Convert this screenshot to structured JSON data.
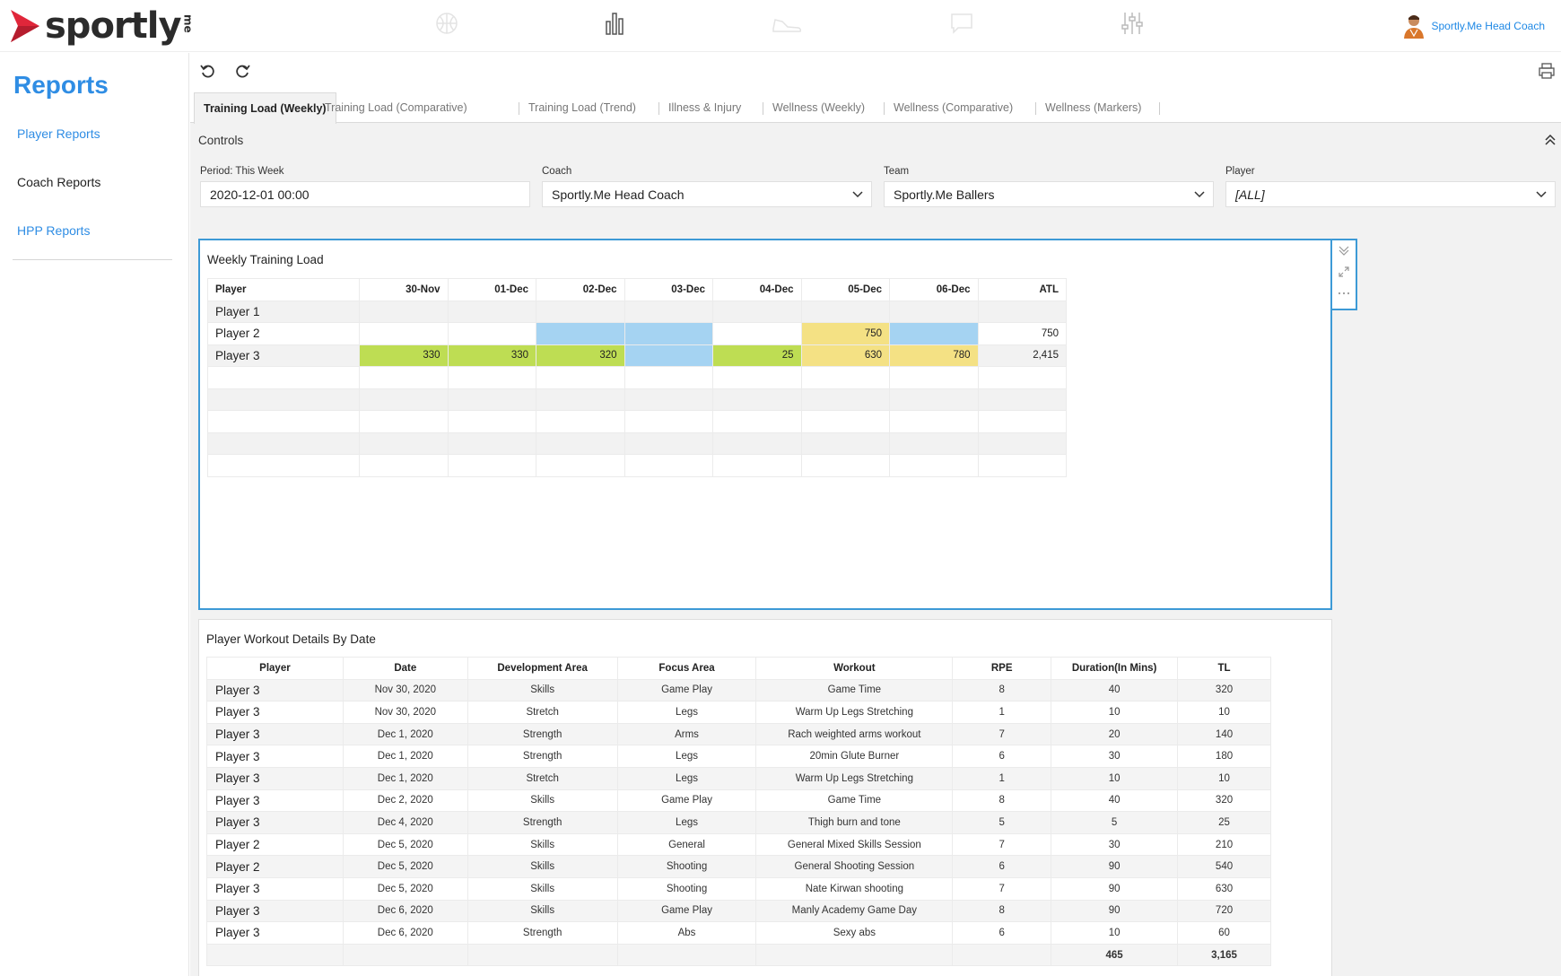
{
  "brand": {
    "name": "sportly",
    "suffix": "me",
    "accent": "#e0263a"
  },
  "nav_icons": [
    "basketball-icon",
    "bar-chart-icon",
    "shoe-icon",
    "chat-icon",
    "sliders-icon"
  ],
  "user": {
    "name": "Sportly.Me Head Coach"
  },
  "sidebar": {
    "title": "Reports",
    "items": [
      {
        "label": "Player Reports"
      },
      {
        "label": "Coach Reports"
      },
      {
        "label": "HPP Reports"
      }
    ]
  },
  "tabs": [
    {
      "label": "Training Load (Weekly)",
      "active": true
    },
    {
      "label": "Training Load (Comparative)"
    },
    {
      "label": "Training Load (Trend)"
    },
    {
      "label": "Illness & Injury"
    },
    {
      "label": "Wellness (Weekly)"
    },
    {
      "label": "Wellness (Comparative)"
    },
    {
      "label": "Wellness (Markers)"
    }
  ],
  "controls": {
    "title": "Controls",
    "period": {
      "label": "Period: This Week",
      "value": "2020-12-01 00:00"
    },
    "coach": {
      "label": "Coach",
      "value": "Sportly.Me Head Coach"
    },
    "team": {
      "label": "Team",
      "value": "Sportly.Me Ballers"
    },
    "player": {
      "label": "Player",
      "value": "[ALL]"
    }
  },
  "weekly": {
    "title": "Weekly Training Load",
    "headers": [
      "Player",
      "30-Nov",
      "01-Dec",
      "02-Dec",
      "03-Dec",
      "04-Dec",
      "05-Dec",
      "06-Dec",
      "ATL"
    ],
    "rows": [
      {
        "player": "Player 1",
        "cells": [
          {
            "v": ""
          },
          {
            "v": ""
          },
          {
            "v": ""
          },
          {
            "v": ""
          },
          {
            "v": ""
          },
          {
            "v": ""
          },
          {
            "v": ""
          }
        ],
        "atl": ""
      },
      {
        "player": "Player 2",
        "cells": [
          {
            "v": ""
          },
          {
            "v": ""
          },
          {
            "v": "",
            "c": "blue"
          },
          {
            "v": "",
            "c": "blue"
          },
          {
            "v": ""
          },
          {
            "v": "750",
            "c": "yellow"
          },
          {
            "v": "",
            "c": "blue"
          }
        ],
        "atl": "750"
      },
      {
        "player": "Player 3",
        "cells": [
          {
            "v": "330",
            "c": "green"
          },
          {
            "v": "330",
            "c": "green"
          },
          {
            "v": "320",
            "c": "green"
          },
          {
            "v": "",
            "c": "blue"
          },
          {
            "v": "25",
            "c": "green"
          },
          {
            "v": "630",
            "c": "yellow"
          },
          {
            "v": "780",
            "c": "yellow"
          }
        ],
        "atl": "2,415"
      }
    ],
    "empty_rows": 5
  },
  "details": {
    "title": "Player Workout Details By Date",
    "headers": [
      "Player",
      "Date",
      "Development Area",
      "Focus Area",
      "Workout",
      "RPE",
      "Duration(In Mins)",
      "TL"
    ],
    "rows": [
      [
        "Player 3",
        "Nov 30, 2020",
        "Skills",
        "Game Play",
        "Game Time",
        "8",
        "40",
        "320"
      ],
      [
        "Player 3",
        "Nov 30, 2020",
        "Stretch",
        "Legs",
        "Warm Up Legs Stretching",
        "1",
        "10",
        "10"
      ],
      [
        "Player 3",
        "Dec 1, 2020",
        "Strength",
        "Arms",
        "Rach weighted arms workout",
        "7",
        "20",
        "140"
      ],
      [
        "Player 3",
        "Dec 1, 2020",
        "Strength",
        "Legs",
        "20min Glute Burner",
        "6",
        "30",
        "180"
      ],
      [
        "Player 3",
        "Dec 1, 2020",
        "Stretch",
        "Legs",
        "Warm Up Legs Stretching",
        "1",
        "10",
        "10"
      ],
      [
        "Player 3",
        "Dec 2, 2020",
        "Skills",
        "Game Play",
        "Game Time",
        "8",
        "40",
        "320"
      ],
      [
        "Player 3",
        "Dec 4, 2020",
        "Strength",
        "Legs",
        "Thigh burn and tone",
        "5",
        "5",
        "25"
      ],
      [
        "Player 2",
        "Dec 5, 2020",
        "Skills",
        "General",
        "General Mixed Skills Session",
        "7",
        "30",
        "210"
      ],
      [
        "Player 2",
        "Dec 5, 2020",
        "Skills",
        "Shooting",
        "General Shooting Session",
        "6",
        "90",
        "540"
      ],
      [
        "Player 3",
        "Dec 5, 2020",
        "Skills",
        "Shooting",
        "Nate Kirwan shooting",
        "7",
        "90",
        "630"
      ],
      [
        "Player 3",
        "Dec 6, 2020",
        "Skills",
        "Game Play",
        "Manly Academy Game Day",
        "8",
        "90",
        "720"
      ],
      [
        "Player 3",
        "Dec 6, 2020",
        "Strength",
        "Abs",
        "Sexy abs",
        "6",
        "10",
        "60"
      ]
    ],
    "totals": [
      "",
      "",
      "",
      "",
      "",
      "",
      "465",
      "3,165"
    ]
  }
}
